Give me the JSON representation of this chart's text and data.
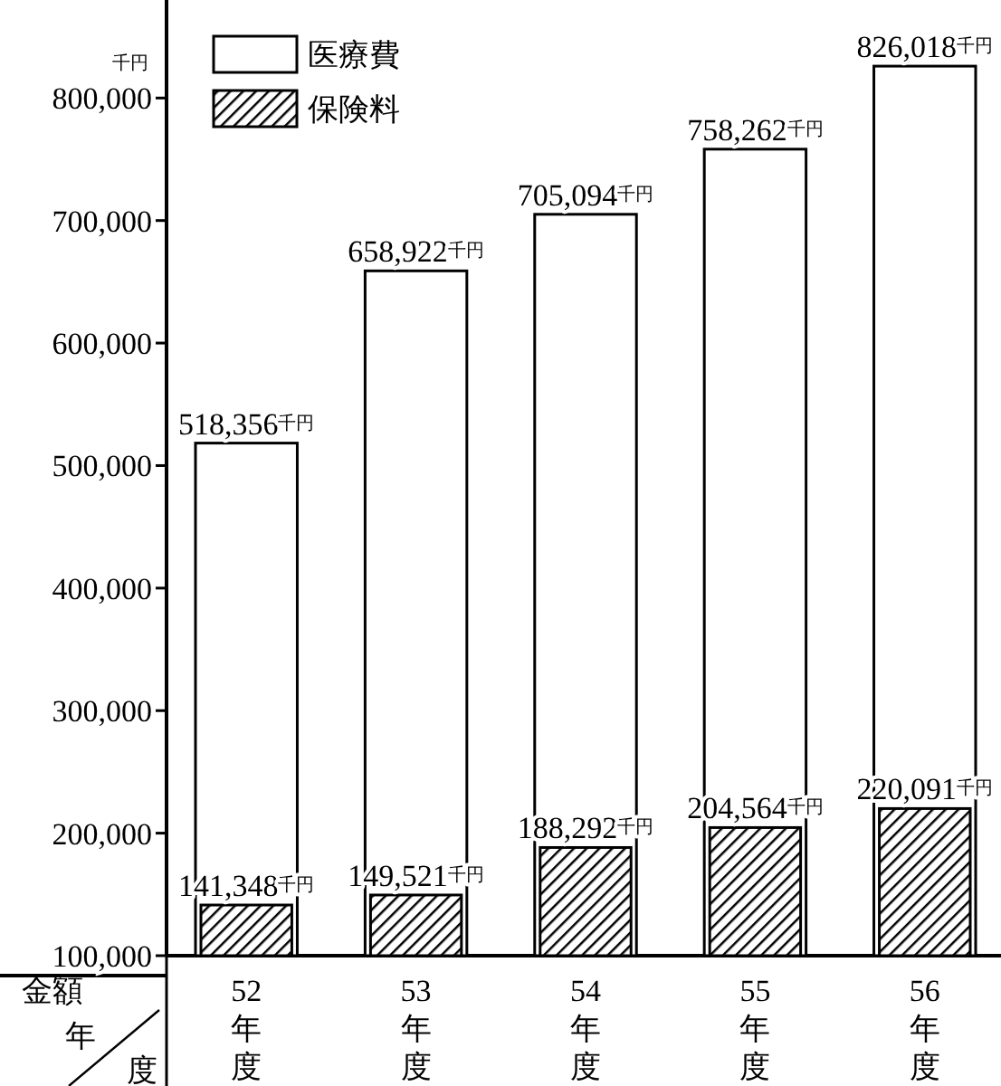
{
  "chart_data": {
    "type": "bar",
    "ylabel": "千円",
    "xlabel": "年度",
    "annotations": [
      "金額"
    ],
    "categories": [
      "52年度",
      "53年度",
      "54年度",
      "55年度",
      "56年度"
    ],
    "series": [
      {
        "name": "医療費",
        "color": "#ffffff",
        "values": [
          518356,
          658922,
          705094,
          758262,
          826018
        ],
        "value_labels": [
          "518,356$^{千円}$",
          "658,922$^{千円}$",
          "705,094$^{千円}$",
          "758,262$^{千円}$",
          "826,018$^{千円}$"
        ]
      },
      {
        "name": "保険料",
        "color": "#000000",
        "values": [
          141348,
          149521,
          188292,
          204564,
          220091
        ],
        "value_labels": [
          "141,348$^{千円}$",
          "149,521$^{千円}$",
          "188,292$^{千円}$",
          "204,564$^{千円}$",
          "220,091$^{千円}$"
        ]
      }
    ],
    "ylim": [
      100000,
      880000
    ],
    "yticks": [
      {
        "value": 100000,
        "label": "100,000"
      },
      {
        "value": 200000,
        "label": "200,000"
      },
      {
        "value": 300000,
        "label": "300,000"
      },
      {
        "value": 400000,
        "label": "400,000"
      },
      {
        "value": 500000,
        "label": "500,000"
      },
      {
        "value": 600000,
        "label": "600,000"
      },
      {
        "value": 700000,
        "label": "700,000"
      },
      {
        "value": 800000,
        "label": "800,000"
      }
    ],
    "legend": "top left",
    "grid": false
  }
}
